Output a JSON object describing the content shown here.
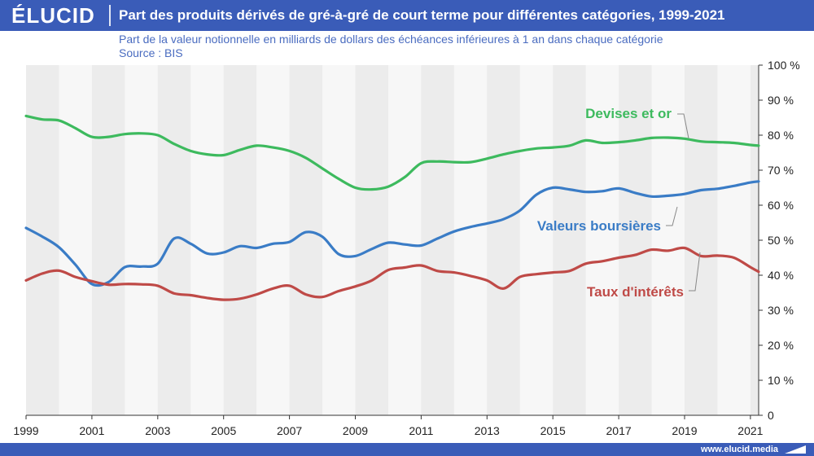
{
  "header": {
    "logo": "ÉLUCID",
    "title": "Part des produits dérivés de gré-à-gré de court terme pour différentes catégories, 1999-2021"
  },
  "subtitle": "Part de la valeur notionnelle en milliards de dollars des échéances inférieures à 1 an dans chaque catégorie",
  "source": "Source : BIS",
  "footer": {
    "url": "www.elucid.media"
  },
  "colors": {
    "brand": "#3a5cb8",
    "devises": "#3dba5e",
    "valeurs": "#3a7cc6",
    "taux": "#bf4a47",
    "band": "#ececec"
  },
  "chart_data": {
    "type": "line",
    "title": "Part des produits dérivés de gré-à-gré de court terme pour différentes catégories, 1999-2021",
    "xlabel": "",
    "ylabel": "",
    "xlim": [
      1999,
      2021.25
    ],
    "ylim": [
      0,
      100
    ],
    "x_ticks": [
      "1999",
      "2001",
      "2003",
      "2005",
      "2007",
      "2009",
      "2011",
      "2013",
      "2015",
      "2017",
      "2019",
      "2021"
    ],
    "y_ticks": [
      "0",
      "10 %",
      "20 %",
      "30 %",
      "40 %",
      "50 %",
      "60 %",
      "70 %",
      "80 %",
      "90 %",
      "100 %"
    ],
    "grid": false,
    "series": [
      {
        "name": "Devises et or",
        "color": "#3dba5e",
        "x": [
          1999,
          1999.5,
          2000,
          2000.5,
          2001,
          2001.5,
          2002,
          2002.5,
          2003,
          2003.5,
          2004,
          2004.5,
          2005,
          2005.5,
          2006,
          2006.5,
          2007,
          2007.5,
          2008,
          2008.5,
          2009,
          2009.5,
          2010,
          2010.5,
          2011,
          2011.5,
          2012,
          2012.5,
          2013,
          2013.5,
          2014,
          2014.5,
          2015,
          2015.5,
          2016,
          2016.5,
          2017,
          2017.5,
          2018,
          2018.5,
          2019,
          2019.5,
          2020,
          2020.5,
          2021,
          2021.25
        ],
        "y": [
          85.5,
          84.5,
          84.2,
          82,
          79.5,
          79.5,
          80.3,
          80.5,
          80,
          77.5,
          75.5,
          74.5,
          74.3,
          75.8,
          77,
          76.5,
          75.5,
          73.5,
          70.5,
          67.5,
          65,
          64.5,
          65.3,
          68,
          72,
          72.5,
          72.3,
          72.3,
          73.3,
          74.5,
          75.5,
          76.2,
          76.5,
          77,
          78.5,
          77.8,
          78,
          78.5,
          79.2,
          79.3,
          79,
          78.2,
          78,
          77.8,
          77.2,
          77
        ]
      },
      {
        "name": "Valeurs boursières",
        "color": "#3a7cc6",
        "x": [
          1999,
          1999.5,
          2000,
          2000.5,
          2001,
          2001.5,
          2002,
          2002.5,
          2003,
          2003.5,
          2004,
          2004.5,
          2005,
          2005.5,
          2006,
          2006.5,
          2007,
          2007.5,
          2008,
          2008.5,
          2009,
          2009.5,
          2010,
          2010.5,
          2011,
          2011.5,
          2012,
          2012.5,
          2013,
          2013.5,
          2014,
          2014.5,
          2015,
          2015.5,
          2016,
          2016.5,
          2017,
          2017.5,
          2018,
          2018.5,
          2019,
          2019.5,
          2020,
          2020.5,
          2021,
          2021.25
        ],
        "y": [
          53.5,
          51,
          48,
          43,
          37.5,
          38,
          42.3,
          42.5,
          43.3,
          50.5,
          49,
          46.2,
          46.5,
          48.3,
          47.8,
          49,
          49.5,
          52.3,
          51,
          46,
          45.5,
          47.5,
          49.3,
          48.8,
          48.5,
          50.5,
          52.5,
          53.8,
          54.8,
          56,
          58.5,
          63,
          65,
          64.5,
          63.8,
          64,
          64.8,
          63.5,
          62.5,
          62.7,
          63.2,
          64.3,
          64.7,
          65.5,
          66.5,
          66.8
        ]
      },
      {
        "name": "Taux d'intérêts",
        "color": "#bf4a47",
        "x": [
          1999,
          1999.5,
          2000,
          2000.5,
          2001,
          2001.5,
          2002,
          2002.5,
          2003,
          2003.5,
          2004,
          2004.5,
          2005,
          2005.5,
          2006,
          2006.5,
          2007,
          2007.5,
          2008,
          2008.5,
          2009,
          2009.5,
          2010,
          2010.5,
          2011,
          2011.5,
          2012,
          2012.5,
          2013,
          2013.5,
          2014,
          2014.5,
          2015,
          2015.5,
          2016,
          2016.5,
          2017,
          2017.5,
          2018,
          2018.5,
          2019,
          2019.5,
          2020,
          2020.5,
          2021,
          2021.25
        ],
        "y": [
          38.5,
          40.5,
          41.3,
          39.5,
          38.3,
          37.3,
          37.5,
          37.4,
          37,
          34.8,
          34.3,
          33.5,
          33,
          33.3,
          34.5,
          36.2,
          37,
          34.5,
          33.8,
          35.5,
          36.8,
          38.5,
          41.5,
          42.2,
          42.8,
          41.2,
          40.8,
          39.8,
          38.5,
          36.2,
          39.5,
          40.3,
          40.8,
          41.2,
          43.3,
          44,
          45,
          45.8,
          47.3,
          47,
          47.8,
          45.5,
          45.6,
          45,
          42.3,
          41
        ]
      }
    ],
    "annotations": [
      {
        "text": "Devises et or",
        "series": 0
      },
      {
        "text": "Valeurs boursières",
        "series": 1
      },
      {
        "text": "Taux d'intérêts",
        "series": 2
      }
    ]
  }
}
